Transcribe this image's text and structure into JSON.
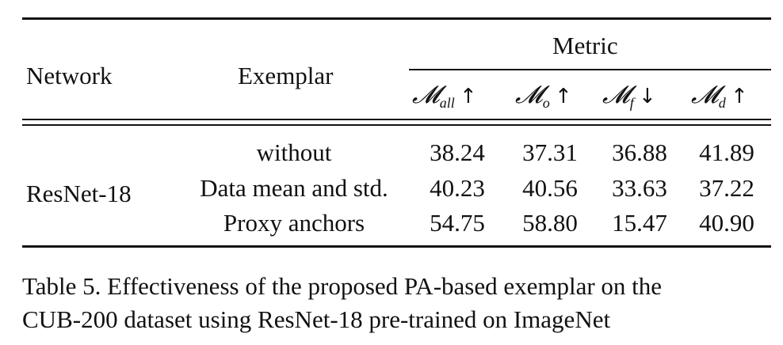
{
  "table": {
    "header": {
      "network": "Network",
      "exemplar": "Exemplar",
      "metric": "Metric",
      "metrics": [
        {
          "symbol": "𝓜",
          "sub": "all",
          "arrow": "↑"
        },
        {
          "symbol": "𝓜",
          "sub": "o",
          "arrow": "↑"
        },
        {
          "symbol": "𝓜",
          "sub": "f",
          "arrow": "↓"
        },
        {
          "symbol": "𝓜",
          "sub": "d",
          "arrow": "↑"
        }
      ]
    },
    "network_value": "ResNet-18",
    "rows": [
      {
        "exemplar": "without",
        "values": [
          "38.24",
          "37.31",
          "36.88",
          "41.89"
        ]
      },
      {
        "exemplar": "Data mean and std.",
        "values": [
          "40.23",
          "40.56",
          "33.63",
          "37.22"
        ]
      },
      {
        "exemplar": "Proxy anchors",
        "values": [
          "54.75",
          "58.80",
          "15.47",
          "40.90"
        ]
      }
    ]
  },
  "caption": {
    "line1": "Table 5. Effectiveness of the proposed PA-based exemplar on the",
    "line2": "CUB-200 dataset using ResNet-18 pre-trained on ImageNet"
  }
}
